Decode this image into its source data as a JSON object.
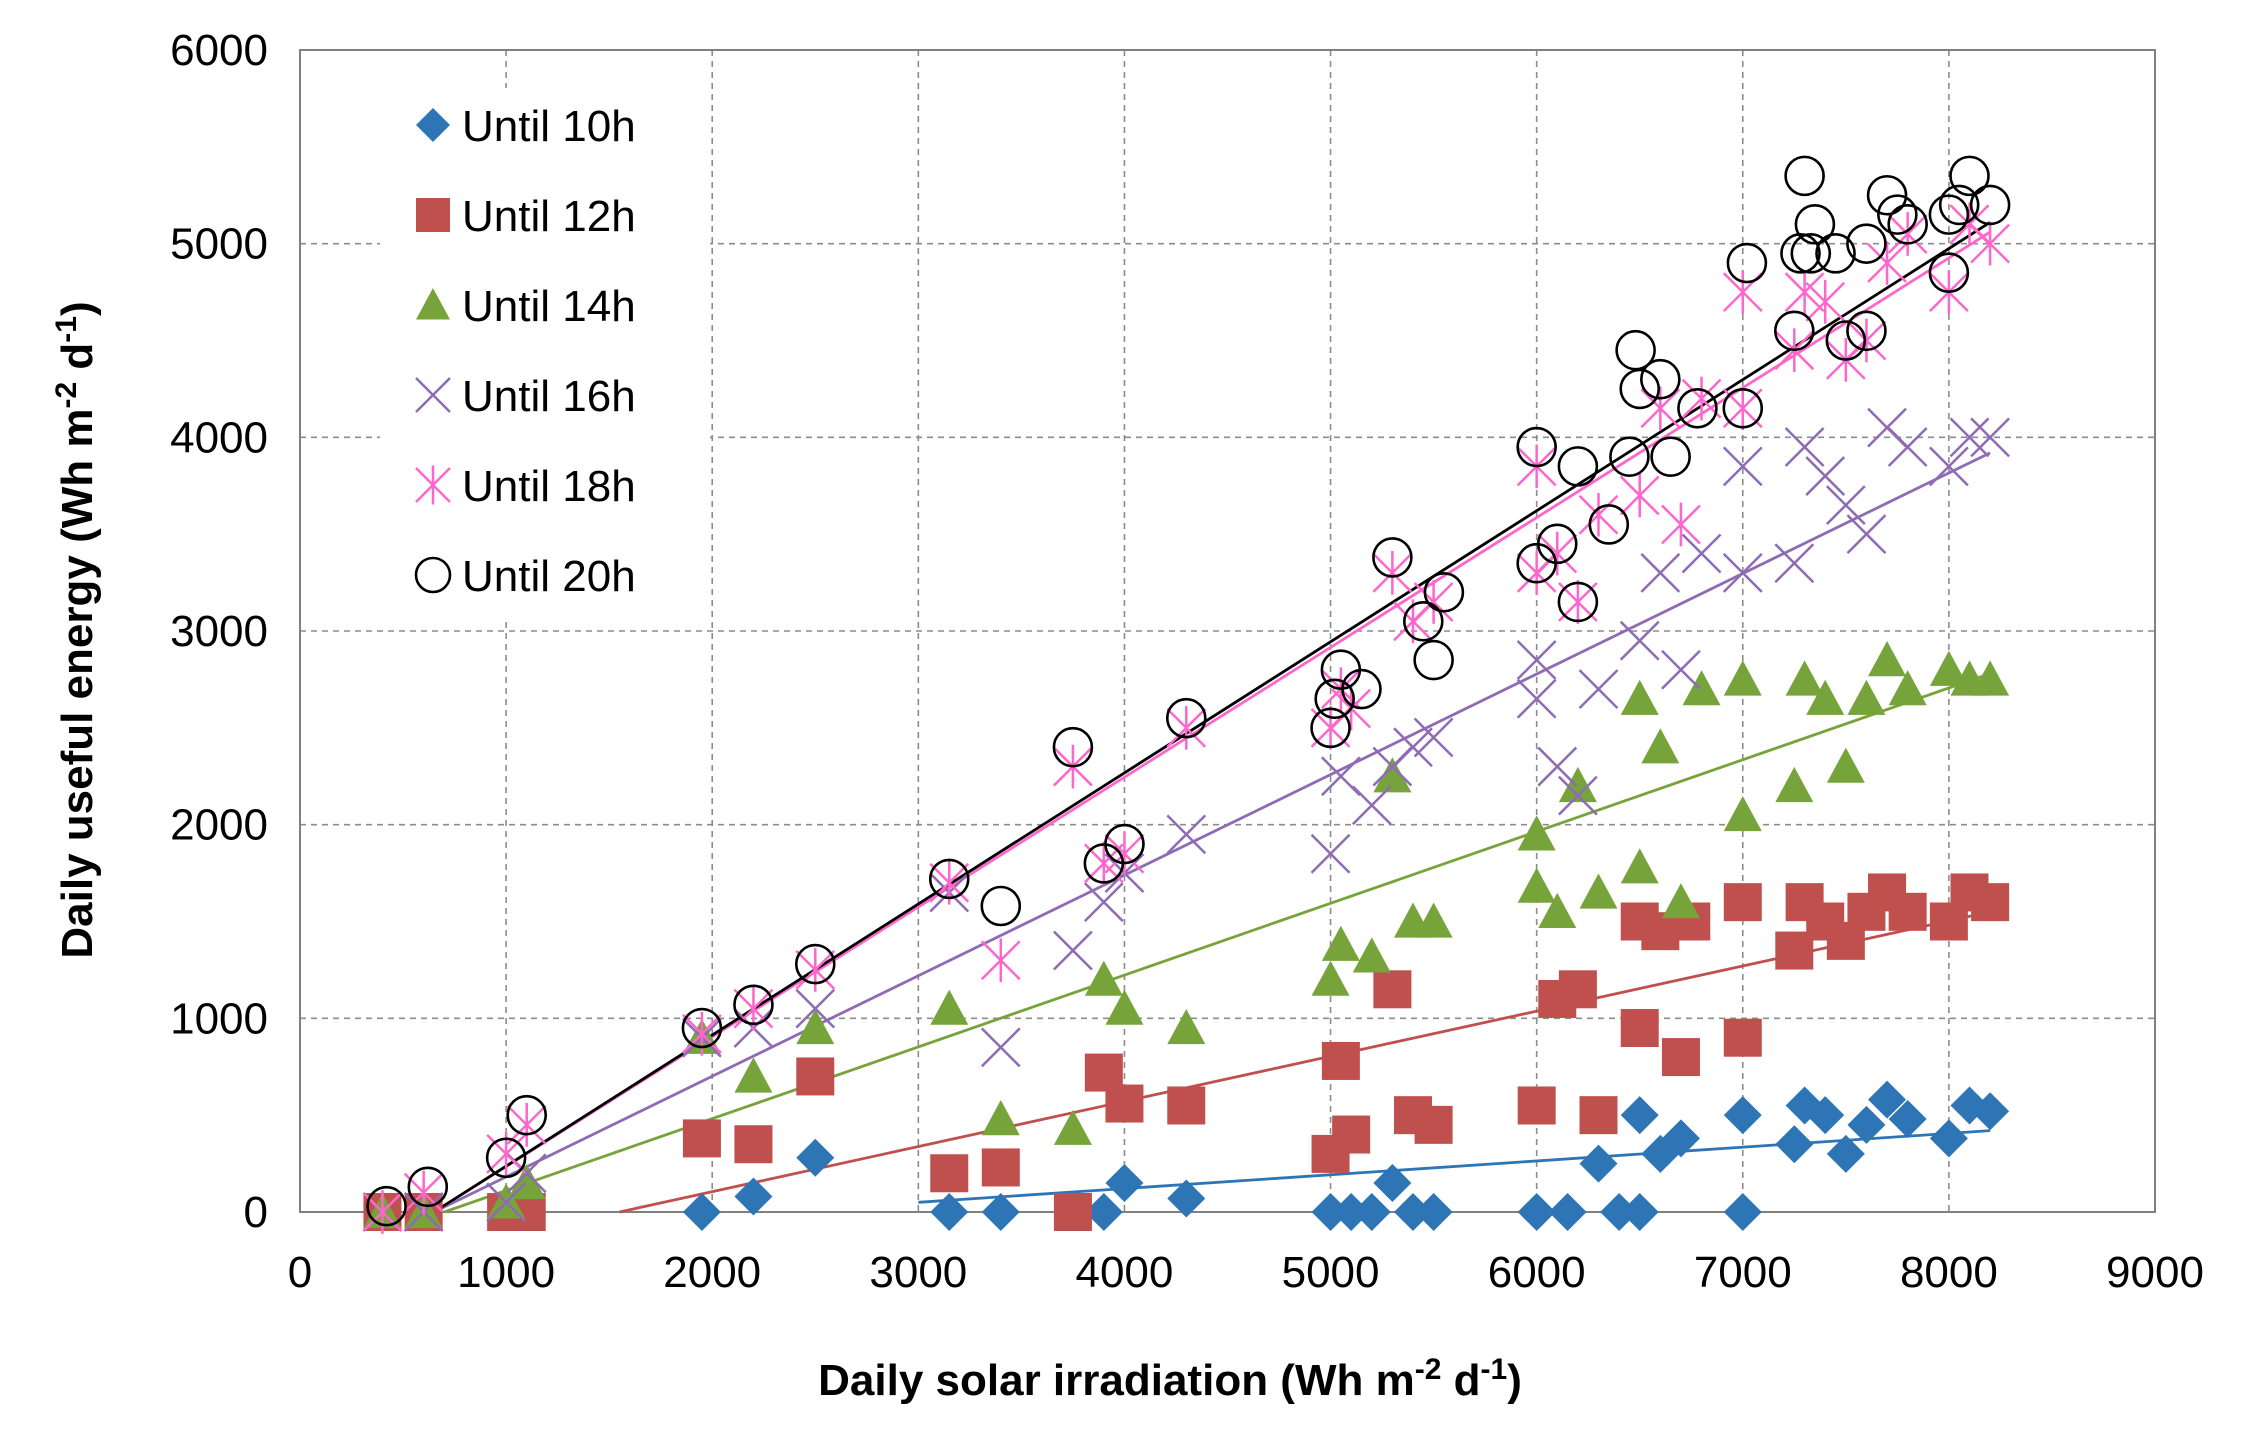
{
  "chart_data": {
    "type": "scatter",
    "title": "",
    "xlabel": {
      "main": "Daily solar irradiation (Wh m",
      "sup1": "-2",
      "mid": " d",
      "sup2": "-1",
      "end": ")"
    },
    "ylabel": {
      "main": "Daily useful energy (Wh m",
      "sup1": "-2",
      "mid": " d",
      "sup2": "-1",
      "end": ")"
    },
    "xlim": [
      0,
      9000
    ],
    "ylim": [
      0,
      6000
    ],
    "xticks": [
      0,
      1000,
      2000,
      3000,
      4000,
      5000,
      6000,
      7000,
      8000,
      9000
    ],
    "yticks": [
      0,
      1000,
      2000,
      3000,
      4000,
      5000,
      6000
    ],
    "xtick_labels": [
      "0",
      "1000",
      "2000",
      "3000",
      "4000",
      "5000",
      "6000",
      "7000",
      "8000",
      "9000"
    ],
    "ytick_labels": [
      "0",
      "1000",
      "2000",
      "3000",
      "4000",
      "5000",
      "6000"
    ],
    "grid": true,
    "legend_position": "top-left",
    "series": [
      {
        "name": "Until 10h",
        "marker": "diamond",
        "color": "#2e75b6",
        "trend": [
          [
            3000,
            50
          ],
          [
            8200,
            420
          ]
        ],
        "points": [
          [
            400,
            0
          ],
          [
            600,
            0
          ],
          [
            1000,
            0
          ],
          [
            1100,
            0
          ],
          [
            1950,
            0
          ],
          [
            2200,
            80
          ],
          [
            2500,
            280
          ],
          [
            3150,
            0
          ],
          [
            3400,
            0
          ],
          [
            3750,
            0
          ],
          [
            3900,
            0
          ],
          [
            4000,
            150
          ],
          [
            4300,
            70
          ],
          [
            5000,
            0
          ],
          [
            5100,
            0
          ],
          [
            5200,
            0
          ],
          [
            5300,
            150
          ],
          [
            5400,
            0
          ],
          [
            5500,
            0
          ],
          [
            6000,
            0
          ],
          [
            6150,
            0
          ],
          [
            6300,
            250
          ],
          [
            6400,
            0
          ],
          [
            6500,
            0
          ],
          [
            6500,
            500
          ],
          [
            6600,
            300
          ],
          [
            6700,
            380
          ],
          [
            7000,
            500
          ],
          [
            7000,
            0
          ],
          [
            7250,
            350
          ],
          [
            7300,
            550
          ],
          [
            7400,
            500
          ],
          [
            7500,
            300
          ],
          [
            7600,
            450
          ],
          [
            7700,
            580
          ],
          [
            7800,
            480
          ],
          [
            8000,
            380
          ],
          [
            8100,
            550
          ],
          [
            8200,
            520
          ]
        ]
      },
      {
        "name": "Until 12h",
        "marker": "square",
        "color": "#c0504d",
        "trend": [
          [
            1550,
            0
          ],
          [
            8200,
            1550
          ]
        ],
        "points": [
          [
            400,
            0
          ],
          [
            600,
            0
          ],
          [
            1000,
            0
          ],
          [
            1100,
            0
          ],
          [
            1950,
            380
          ],
          [
            2200,
            350
          ],
          [
            2500,
            700
          ],
          [
            3150,
            200
          ],
          [
            3400,
            230
          ],
          [
            3750,
            0
          ],
          [
            3900,
            720
          ],
          [
            4000,
            560
          ],
          [
            4300,
            550
          ],
          [
            5000,
            300
          ],
          [
            5050,
            780
          ],
          [
            5100,
            400
          ],
          [
            5300,
            1150
          ],
          [
            5400,
            500
          ],
          [
            5500,
            450
          ],
          [
            6000,
            550
          ],
          [
            6100,
            1100
          ],
          [
            6200,
            1150
          ],
          [
            6300,
            500
          ],
          [
            6500,
            950
          ],
          [
            6500,
            1500
          ],
          [
            6600,
            1450
          ],
          [
            6700,
            800
          ],
          [
            6750,
            1500
          ],
          [
            7000,
            900
          ],
          [
            7000,
            1600
          ],
          [
            7250,
            1350
          ],
          [
            7300,
            1600
          ],
          [
            7400,
            1500
          ],
          [
            7500,
            1400
          ],
          [
            7600,
            1550
          ],
          [
            7700,
            1650
          ],
          [
            7800,
            1550
          ],
          [
            8000,
            1500
          ],
          [
            8100,
            1650
          ],
          [
            8200,
            1600
          ]
        ]
      },
      {
        "name": "Until 14h",
        "marker": "triangle",
        "color": "#77a33b",
        "trend": [
          [
            700,
            0
          ],
          [
            8200,
            2780
          ]
        ],
        "points": [
          [
            400,
            0
          ],
          [
            600,
            0
          ],
          [
            1000,
            50
          ],
          [
            1100,
            150
          ],
          [
            1950,
            900
          ],
          [
            2200,
            700
          ],
          [
            2500,
            950
          ],
          [
            3150,
            1050
          ],
          [
            3400,
            480
          ],
          [
            3750,
            430
          ],
          [
            3900,
            1200
          ],
          [
            4000,
            1050
          ],
          [
            4300,
            950
          ],
          [
            5000,
            1200
          ],
          [
            5050,
            1380
          ],
          [
            5200,
            1320
          ],
          [
            5300,
            2250
          ],
          [
            5400,
            1500
          ],
          [
            5500,
            1500
          ],
          [
            6000,
            1950
          ],
          [
            6000,
            1680
          ],
          [
            6100,
            1550
          ],
          [
            6200,
            2200
          ],
          [
            6300,
            1650
          ],
          [
            6500,
            1780
          ],
          [
            6500,
            2650
          ],
          [
            6600,
            2400
          ],
          [
            6700,
            1600
          ],
          [
            6800,
            2700
          ],
          [
            7000,
            2050
          ],
          [
            7000,
            2750
          ],
          [
            7250,
            2200
          ],
          [
            7300,
            2750
          ],
          [
            7400,
            2650
          ],
          [
            7500,
            2300
          ],
          [
            7600,
            2650
          ],
          [
            7700,
            2850
          ],
          [
            7800,
            2700
          ],
          [
            8000,
            2800
          ],
          [
            8100,
            2750
          ],
          [
            8200,
            2750
          ]
        ]
      },
      {
        "name": "Until 16h",
        "marker": "x",
        "color": "#8e6bb4",
        "trend": [
          [
            650,
            0
          ],
          [
            8200,
            3920
          ]
        ],
        "points": [
          [
            400,
            0
          ],
          [
            600,
            0
          ],
          [
            1000,
            50
          ],
          [
            1100,
            200
          ],
          [
            1950,
            900
          ],
          [
            2200,
            950
          ],
          [
            2500,
            1050
          ],
          [
            3150,
            1650
          ],
          [
            3400,
            850
          ],
          [
            3750,
            1350
          ],
          [
            3900,
            1600
          ],
          [
            4000,
            1750
          ],
          [
            4300,
            1950
          ],
          [
            5000,
            1850
          ],
          [
            5050,
            2250
          ],
          [
            5200,
            2100
          ],
          [
            5300,
            2300
          ],
          [
            5400,
            2400
          ],
          [
            5500,
            2450
          ],
          [
            6000,
            2850
          ],
          [
            6000,
            2650
          ],
          [
            6100,
            2300
          ],
          [
            6200,
            2150
          ],
          [
            6300,
            2700
          ],
          [
            6500,
            2950
          ],
          [
            6600,
            3300
          ],
          [
            6700,
            2800
          ],
          [
            6800,
            3400
          ],
          [
            7000,
            3300
          ],
          [
            7000,
            3850
          ],
          [
            7250,
            3350
          ],
          [
            7300,
            3950
          ],
          [
            7400,
            3800
          ],
          [
            7500,
            3650
          ],
          [
            7600,
            3500
          ],
          [
            7700,
            4050
          ],
          [
            7800,
            3950
          ],
          [
            8000,
            3850
          ],
          [
            8100,
            4000
          ],
          [
            8200,
            4000
          ]
        ]
      },
      {
        "name": "Until 18h",
        "marker": "asterisk",
        "color": "#ff66cc",
        "trend": [
          [
            650,
            0
          ],
          [
            8200,
            5060
          ]
        ],
        "points": [
          [
            400,
            0
          ],
          [
            600,
            100
          ],
          [
            1000,
            300
          ],
          [
            1100,
            450
          ],
          [
            1950,
            920
          ],
          [
            2200,
            1050
          ],
          [
            2500,
            1250
          ],
          [
            3150,
            1700
          ],
          [
            3400,
            1300
          ],
          [
            3750,
            2300
          ],
          [
            3900,
            1800
          ],
          [
            4000,
            1850
          ],
          [
            4300,
            2500
          ],
          [
            5000,
            2500
          ],
          [
            5050,
            2700
          ],
          [
            5100,
            2600
          ],
          [
            5300,
            3300
          ],
          [
            5400,
            3050
          ],
          [
            5500,
            3150
          ],
          [
            6000,
            3300
          ],
          [
            6000,
            3850
          ],
          [
            6100,
            3400
          ],
          [
            6200,
            3150
          ],
          [
            6300,
            3600
          ],
          [
            6500,
            3700
          ],
          [
            6600,
            4150
          ],
          [
            6700,
            3550
          ],
          [
            6800,
            4200
          ],
          [
            7000,
            4150
          ],
          [
            7000,
            4750
          ],
          [
            7250,
            4450
          ],
          [
            7300,
            4750
          ],
          [
            7400,
            4700
          ],
          [
            7500,
            4400
          ],
          [
            7600,
            4500
          ],
          [
            7700,
            4900
          ],
          [
            7800,
            5050
          ],
          [
            8000,
            4750
          ],
          [
            8100,
            5100
          ],
          [
            8200,
            5000
          ]
        ]
      },
      {
        "name": "Until 20h",
        "marker": "circle",
        "color": "#000000",
        "trend": [
          [
            650,
            0
          ],
          [
            8200,
            5110
          ]
        ],
        "points": [
          [
            420,
            30
          ],
          [
            620,
            130
          ],
          [
            1000,
            280
          ],
          [
            1100,
            500
          ],
          [
            1950,
            950
          ],
          [
            2200,
            1070
          ],
          [
            2500,
            1280
          ],
          [
            3150,
            1720
          ],
          [
            3400,
            1580
          ],
          [
            3750,
            2400
          ],
          [
            3900,
            1800
          ],
          [
            4000,
            1900
          ],
          [
            4300,
            2550
          ],
          [
            5000,
            2500
          ],
          [
            5020,
            2650
          ],
          [
            5050,
            2800
          ],
          [
            5150,
            2700
          ],
          [
            5300,
            3380
          ],
          [
            5450,
            3050
          ],
          [
            5500,
            2850
          ],
          [
            5550,
            3200
          ],
          [
            6000,
            3950
          ],
          [
            6000,
            3350
          ],
          [
            6100,
            3450
          ],
          [
            6200,
            3850
          ],
          [
            6200,
            3150
          ],
          [
            6350,
            3550
          ],
          [
            6450,
            3900
          ],
          [
            6480,
            4450
          ],
          [
            6500,
            4250
          ],
          [
            6600,
            4300
          ],
          [
            6650,
            3900
          ],
          [
            6780,
            4150
          ],
          [
            7000,
            4150
          ],
          [
            7020,
            4900
          ],
          [
            7250,
            4550
          ],
          [
            7280,
            4950
          ],
          [
            7300,
            5350
          ],
          [
            7330,
            4950
          ],
          [
            7350,
            5100
          ],
          [
            7450,
            4950
          ],
          [
            7500,
            4500
          ],
          [
            7600,
            4550
          ],
          [
            7600,
            5000
          ],
          [
            7700,
            5250
          ],
          [
            7750,
            5150
          ],
          [
            7800,
            5100
          ],
          [
            8000,
            5150
          ],
          [
            8000,
            4850
          ],
          [
            8050,
            5200
          ],
          [
            8100,
            5350
          ],
          [
            8200,
            5200
          ]
        ]
      }
    ]
  }
}
